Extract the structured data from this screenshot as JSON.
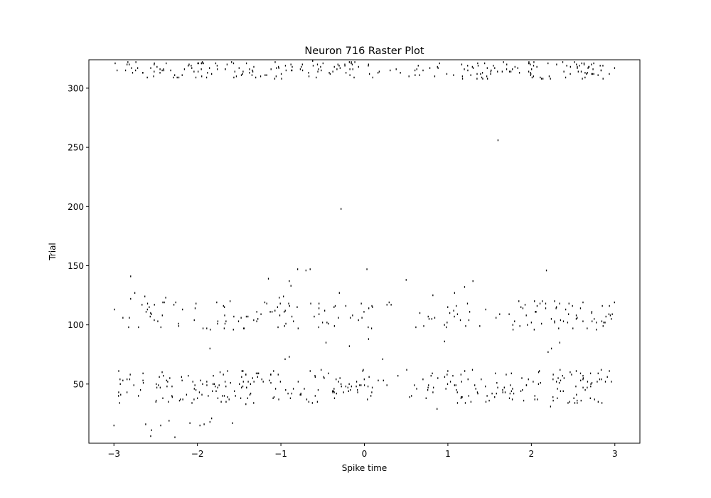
{
  "chart_data": {
    "type": "scatter",
    "title": "Neuron 716 Raster Plot",
    "xlabel": "Spike time",
    "ylabel": "Trial",
    "xlim": [
      -3.3,
      3.3
    ],
    "ylim": [
      0,
      324
    ],
    "xticks": [
      -3,
      -2,
      -1,
      0,
      1,
      2,
      3
    ],
    "xtick_labels": [
      "−3",
      "−2",
      "−1",
      "0",
      "1",
      "2",
      "3"
    ],
    "yticks": [
      50,
      100,
      150,
      200,
      250,
      300
    ],
    "ytick_labels": [
      "50",
      "100",
      "150",
      "200",
      "250",
      "300"
    ],
    "grid": false,
    "marker_color": "#000000",
    "spike_bands": [
      {
        "trial_min": 308,
        "trial_max": 322,
        "t_min": -3.0,
        "t_max": 3.0,
        "count": 260
      },
      {
        "trial_min": 96,
        "trial_max": 120,
        "t_min": -3.0,
        "t_max": 3.0,
        "count": 210
      },
      {
        "trial_min": 34,
        "trial_max": 62,
        "t_min": -3.0,
        "t_max": 3.0,
        "count": 330
      }
    ],
    "points": [
      {
        "x": -3.0,
        "y": 15
      },
      {
        "x": -2.62,
        "y": 16
      },
      {
        "x": -2.55,
        "y": 11
      },
      {
        "x": -2.56,
        "y": 6
      },
      {
        "x": -2.27,
        "y": 5
      },
      {
        "x": -2.44,
        "y": 15
      },
      {
        "x": -2.34,
        "y": 19
      },
      {
        "x": -2.09,
        "y": 17
      },
      {
        "x": -1.97,
        "y": 15
      },
      {
        "x": -1.92,
        "y": 16
      },
      {
        "x": -1.85,
        "y": 18
      },
      {
        "x": -1.83,
        "y": 21
      },
      {
        "x": -1.58,
        "y": 17
      },
      {
        "x": -1.42,
        "y": 33
      },
      {
        "x": 0.87,
        "y": 29
      },
      {
        "x": 2.23,
        "y": 31
      },
      {
        "x": 2.52,
        "y": 34
      },
      {
        "x": 2.8,
        "y": 35
      },
      {
        "x": -1.85,
        "y": 80
      },
      {
        "x": -0.46,
        "y": 85
      },
      {
        "x": -0.18,
        "y": 82
      },
      {
        "x": 0.05,
        "y": 88
      },
      {
        "x": 0.96,
        "y": 86
      },
      {
        "x": 2.2,
        "y": 77
      },
      {
        "x": 2.24,
        "y": 80
      },
      {
        "x": 2.34,
        "y": 85
      },
      {
        "x": -0.9,
        "y": 73
      },
      {
        "x": -0.95,
        "y": 71
      },
      {
        "x": 0.22,
        "y": 71
      },
      {
        "x": -2.8,
        "y": 141
      },
      {
        "x": -2.75,
        "y": 127
      },
      {
        "x": -2.8,
        "y": 122
      },
      {
        "x": -2.63,
        "y": 124
      },
      {
        "x": -2.38,
        "y": 123
      },
      {
        "x": -1.15,
        "y": 139
      },
      {
        "x": -1.02,
        "y": 123
      },
      {
        "x": -0.97,
        "y": 124
      },
      {
        "x": -0.9,
        "y": 137
      },
      {
        "x": -0.88,
        "y": 133
      },
      {
        "x": -0.8,
        "y": 147
      },
      {
        "x": -0.7,
        "y": 146
      },
      {
        "x": -0.65,
        "y": 147
      },
      {
        "x": -0.3,
        "y": 127
      },
      {
        "x": 0.03,
        "y": 147
      },
      {
        "x": 0.5,
        "y": 138
      },
      {
        "x": 0.82,
        "y": 125
      },
      {
        "x": 1.08,
        "y": 127
      },
      {
        "x": 1.2,
        "y": 132
      },
      {
        "x": 1.3,
        "y": 137
      },
      {
        "x": 2.18,
        "y": 146
      },
      {
        "x": 2.13,
        "y": 120
      },
      {
        "x": -0.28,
        "y": 198
      },
      {
        "x": 1.6,
        "y": 256
      },
      {
        "x": 0.27,
        "y": 117
      },
      {
        "x": 0.32,
        "y": 117
      },
      {
        "x": 2.45,
        "y": 118
      },
      {
        "x": -2.1,
        "y": 320
      },
      {
        "x": 1.44,
        "y": 321
      },
      {
        "x": 2.03,
        "y": 322
      },
      {
        "x": -0.62,
        "y": 323
      }
    ]
  }
}
